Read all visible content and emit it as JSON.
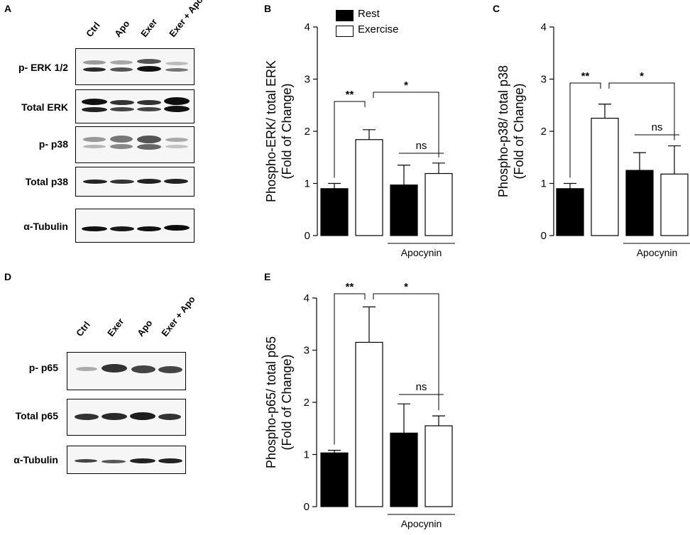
{
  "panels": {
    "A": "A",
    "B": "B",
    "C": "C",
    "D": "D",
    "E": "E"
  },
  "blotA": {
    "lanes": [
      "Ctrl",
      "Apo",
      "Exer",
      "Exer + Apo"
    ],
    "rows": [
      "p- ERK 1/2",
      "Total ERK",
      "p- p38",
      "Total p38",
      "α-Tubulin"
    ]
  },
  "blotD": {
    "lanes": [
      "Ctrl",
      "Exer",
      "Apo",
      "Exer + Apo"
    ],
    "rows": [
      "p- p65",
      "Total p65",
      "α-Tubulin"
    ]
  },
  "legend": {
    "rest": "Rest",
    "exercise": "Exercise"
  },
  "colors": {
    "rest": "#000000",
    "exercise": "#ffffff"
  },
  "chart_data": [
    {
      "type": "bar",
      "panel": "B",
      "ylabel": [
        "Phospho-ERK/ total ERK",
        "(Fold of Change)"
      ],
      "ylim": [
        0,
        4
      ],
      "yticks": [
        0,
        1,
        2,
        3,
        4
      ],
      "bar_fills": [
        "#000000",
        "#ffffff",
        "#000000",
        "#ffffff"
      ],
      "values": [
        0.9,
        1.84,
        0.97,
        1.19
      ],
      "errors": [
        0.1,
        0.19,
        0.38,
        0.2
      ],
      "group_label": "Apocynin",
      "significance": [
        {
          "from": 0,
          "to": 1,
          "label": "**"
        },
        {
          "from": 1,
          "to": 3,
          "label": "*"
        },
        {
          "from": 2,
          "to": 3,
          "label": "ns"
        }
      ]
    },
    {
      "type": "bar",
      "panel": "C",
      "ylabel": [
        "Phospho-p38/ total p38",
        "(Fold of Change)"
      ],
      "ylim": [
        0,
        4
      ],
      "yticks": [
        0,
        1,
        2,
        3,
        4
      ],
      "bar_fills": [
        "#000000",
        "#ffffff",
        "#000000",
        "#ffffff"
      ],
      "values": [
        0.9,
        2.25,
        1.25,
        1.18
      ],
      "errors": [
        0.1,
        0.27,
        0.34,
        0.54
      ],
      "group_label": "Apocynin",
      "significance": [
        {
          "from": 0,
          "to": 1,
          "label": "**"
        },
        {
          "from": 1,
          "to": 3,
          "label": "*"
        },
        {
          "from": 2,
          "to": 3,
          "label": "ns"
        }
      ]
    },
    {
      "type": "bar",
      "panel": "E",
      "ylabel": [
        "Phospho-p65/ total p65",
        "(Fold of Change)"
      ],
      "ylim": [
        0,
        4
      ],
      "yticks": [
        0,
        1,
        2,
        3,
        4
      ],
      "bar_fills": [
        "#000000",
        "#ffffff",
        "#000000",
        "#ffffff"
      ],
      "values": [
        1.03,
        3.15,
        1.41,
        1.55
      ],
      "errors": [
        0.05,
        0.68,
        0.56,
        0.19
      ],
      "group_label": "Apocynin",
      "significance": [
        {
          "from": 0,
          "to": 1,
          "label": "**"
        },
        {
          "from": 1,
          "to": 3,
          "label": "*"
        },
        {
          "from": 2,
          "to": 3,
          "label": "ns"
        }
      ]
    }
  ]
}
